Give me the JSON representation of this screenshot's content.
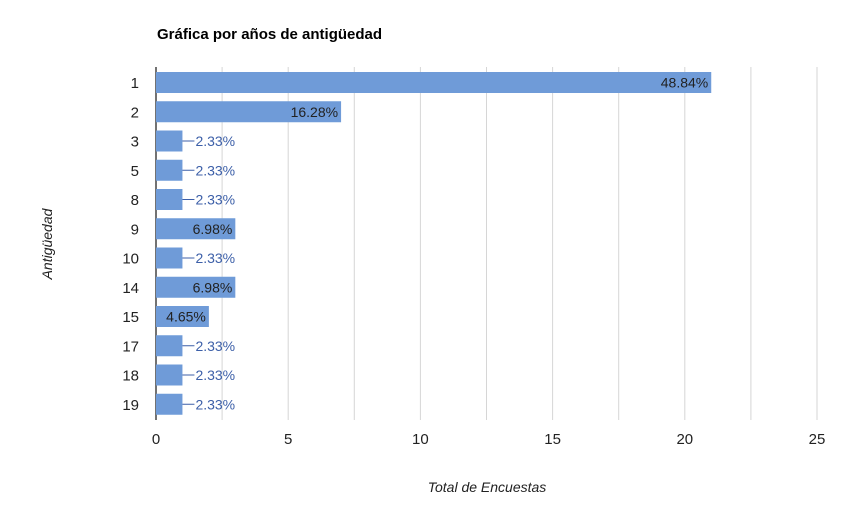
{
  "chart_data": {
    "type": "bar",
    "orientation": "horizontal",
    "title": "Gráfica por años de antigüedad",
    "xlabel": "Total de Encuestas",
    "ylabel": "Antigüedad",
    "categories": [
      "1",
      "2",
      "3",
      "5",
      "8",
      "9",
      "10",
      "14",
      "15",
      "17",
      "18",
      "19"
    ],
    "values": [
      21,
      7,
      1,
      1,
      1,
      3,
      1,
      3,
      2,
      1,
      1,
      1
    ],
    "data_labels": [
      "48.84%",
      "16.28%",
      "2.33%",
      "2.33%",
      "2.33%",
      "6.98%",
      "2.33%",
      "6.98%",
      "4.65%",
      "2.33%",
      "2.33%",
      "2.33%"
    ],
    "xlim": [
      0,
      25
    ],
    "xticks": [
      "0",
      "5",
      "10",
      "15",
      "20",
      "25"
    ],
    "grid": true,
    "bar_color": "#6f9bd8",
    "label_color": "#3c5fa8",
    "grid_color": "#d6d6d6"
  }
}
